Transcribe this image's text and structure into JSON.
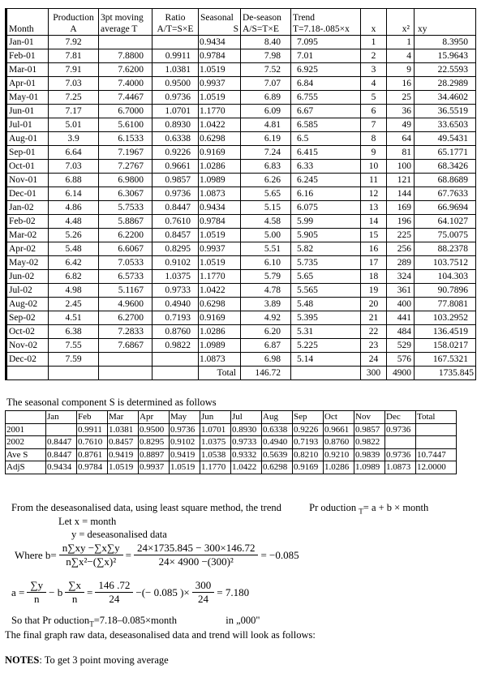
{
  "main_table": {
    "header_rows": [
      [
        [
          "",
          "Month"
        ],
        [
          "Production",
          "A"
        ],
        [
          "3pt moving",
          "average T"
        ],
        [
          "Ratio",
          "A/T=S×E"
        ],
        [
          "Seasonal",
          "S"
        ],
        [
          "De-season",
          "A/S=T×E"
        ],
        [
          "Trend",
          "T=7.18-.085×x"
        ],
        [
          "",
          "x"
        ],
        [
          "",
          "x²"
        ],
        [
          "",
          "xy"
        ]
      ]
    ],
    "rows": [
      [
        "Jan-01",
        "7.92",
        "",
        "",
        "0.9434",
        "8.40",
        "7.095",
        "1",
        "1",
        "8.3950"
      ],
      [
        "Feb-01",
        "7.81",
        "7.8800",
        "0.9911",
        "0.9784",
        "7.98",
        "7.01",
        "2",
        "4",
        "15.9643"
      ],
      [
        "Mar-01",
        "7.91",
        "7.6200",
        "1.0381",
        "1.0519",
        "7.52",
        "6.925",
        "3",
        "9",
        "22.5593"
      ],
      [
        "Apr-01",
        "7.03",
        "7.4000",
        "0.9500",
        "0.9937",
        "7.07",
        "6.84",
        "4",
        "16",
        "28.2989"
      ],
      [
        "May-01",
        "7.25",
        "7.4467",
        "0.9736",
        "1.0519",
        "6.89",
        "6.755",
        "5",
        "25",
        "34.4602"
      ],
      [
        "Jun-01",
        "7.17",
        "6.7000",
        "1.0701",
        "1.1770",
        "6.09",
        "6.67",
        "6",
        "36",
        "36.5519"
      ],
      [
        "Jul-01",
        "5.01",
        "5.6100",
        "0.8930",
        "1.0422",
        "4.81",
        "6.585",
        "7",
        "49",
        "33.6503"
      ],
      [
        "Aug-01",
        "3.9",
        "6.1533",
        "0.6338",
        "0.6298",
        "6.19",
        "6.5",
        "8",
        "64",
        "49.5431"
      ],
      [
        "Sep-01",
        "6.64",
        "7.1967",
        "0.9226",
        "0.9169",
        "7.24",
        "6.415",
        "9",
        "81",
        "65.1771"
      ],
      [
        "Oct-01",
        "7.03",
        "7.2767",
        "0.9661",
        "1.0286",
        "6.83",
        "6.33",
        "10",
        "100",
        "68.3426"
      ],
      [
        "Nov-01",
        "6.88",
        "6.9800",
        "0.9857",
        "1.0989",
        "6.26",
        "6.245",
        "11",
        "121",
        "68.8689"
      ],
      [
        "Dec-01",
        "6.14",
        "6.3067",
        "0.9736",
        "1.0873",
        "5.65",
        "6.16",
        "12",
        "144",
        "67.7633"
      ],
      [
        "Jan-02",
        "4.86",
        "5.7533",
        "0.8447",
        "0.9434",
        "5.15",
        "6.075",
        "13",
        "169",
        "66.9694"
      ],
      [
        "Feb-02",
        "4.48",
        "5.8867",
        "0.7610",
        "0.9784",
        "4.58",
        "5.99",
        "14",
        "196",
        "64.1027"
      ],
      [
        "Mar-02",
        "5.26",
        "6.2200",
        "0.8457",
        "1.0519",
        "5.00",
        "5.905",
        "15",
        "225",
        "75.0075"
      ],
      [
        "Apr-02",
        "5.48",
        "6.6067",
        "0.8295",
        "0.9937",
        "5.51",
        "5.82",
        "16",
        "256",
        "88.2378"
      ],
      [
        "May-02",
        "6.42",
        "7.0533",
        "0.9102",
        "1.0519",
        "6.10",
        "5.735",
        "17",
        "289",
        "103.7512"
      ],
      [
        "Jun-02",
        "6.82",
        "6.5733",
        "1.0375",
        "1.1770",
        "5.79",
        "5.65",
        "18",
        "324",
        "104.303"
      ],
      [
        "Jul-02",
        "4.98",
        "5.1167",
        "0.9733",
        "1.0422",
        "4.78",
        "5.565",
        "19",
        "361",
        "90.7896"
      ],
      [
        "Aug-02",
        "2.45",
        "4.9600",
        "0.4940",
        "0.6298",
        "3.89",
        "5.48",
        "20",
        "400",
        "77.8081"
      ],
      [
        "Sep-02",
        "4.51",
        "6.2700",
        "0.7193",
        "0.9169",
        "4.92",
        "5.395",
        "21",
        "441",
        "103.2952"
      ],
      [
        "Oct-02",
        "6.38",
        "7.2833",
        "0.8760",
        "1.0286",
        "6.20",
        "5.31",
        "22",
        "484",
        "136.4519"
      ],
      [
        "Nov-02",
        "7.55",
        "7.6867",
        "0.9822",
        "1.0989",
        "6.87",
        "5.225",
        "23",
        "529",
        "158.0217"
      ],
      [
        "Dec-02",
        "7.59",
        "",
        "",
        "1.0873",
        "6.98",
        "5.14",
        "24",
        "576",
        "167.5321"
      ],
      [
        "",
        "",
        "",
        "",
        "Total",
        "146.72",
        "",
        "300",
        "4900",
        "1735.845"
      ]
    ]
  },
  "seasonal_section": {
    "intro": "The seasonal component S is determined as follows",
    "header_rows": [
      [
        "",
        "Jan",
        "Feb",
        "Mar",
        "Apr",
        "May",
        "Jun",
        "Jul",
        "Aug",
        "Sep",
        "Oct",
        "Nov",
        "Dec",
        "Total"
      ]
    ],
    "rows": [
      [
        "2001",
        "",
        "0.9911",
        "1.0381",
        "0.9500",
        "0.9736",
        "1.0701",
        "0.8930",
        "0.6338",
        "0.9226",
        "0.9661",
        "0.9857",
        "0.9736",
        ""
      ],
      [
        "2002",
        "0.8447",
        "0.7610",
        "0.8457",
        "0.8295",
        "0.9102",
        "1.0375",
        "0.9733",
        "0.4940",
        "0.7193",
        "0.8760",
        "0.9822",
        "",
        ""
      ],
      [
        "Ave S",
        "0.8447",
        "0.8761",
        "0.9419",
        "0.8897",
        "0.9419",
        "1.0538",
        "0.9332",
        "0.5639",
        "0.8210",
        "0.9210",
        "0.9839",
        "0.9736",
        "10.7447"
      ],
      [
        "AdjS",
        "0.9434",
        "0.9784",
        "1.0519",
        "0.9937",
        "1.0519",
        "1.1770",
        "1.0422",
        "0.6298",
        "0.9169",
        "1.0286",
        "1.0989",
        "1.0873",
        "12.0000"
      ]
    ]
  },
  "trend_section": {
    "intro": "From the deseasonalised data, using least square method, the trend",
    "production_eq_prefix": "Pr oduction ",
    "production_eq_sub": "T",
    "production_eq_rest": "= a + b × month",
    "let_x": "Let x = month",
    "let_y": "y = deseasonalised data",
    "where_label": "Where b=",
    "b_frac1_num": "n∑xy −∑x∑y",
    "b_frac1_den": "n∑x²−(∑x)²",
    "eq1": "=",
    "b_frac2_num": "24×1735.845 − 300×146.72",
    "b_frac2_den": "24× 4900 −(300)²",
    "b_result": "= −0.085",
    "a_label": "a =",
    "a_frac1_num": "∑y",
    "a_frac1_den": "n",
    "a_minus_b": "− b",
    "a_frac2_num": "∑x",
    "a_frac2_den": "n",
    "a_eq": "=",
    "a_frac3_num": "146 .72",
    "a_frac3_den": "24",
    "a_mid": "−(− 0.085 )×",
    "a_frac4_num": "300",
    "a_frac4_den": "24",
    "a_result": "= 7.180",
    "so_that_prefix": "So that Pr oduction",
    "so_that_sub": "T",
    "so_that_rest": "=7.18–0.085×month",
    "in_000": "in „000\"",
    "final_graph": "The final graph raw data, deseasonalised data and trend will look as follows:"
  },
  "notes": {
    "bold": "NOTES",
    "rest": ": To get 3 point moving average"
  }
}
